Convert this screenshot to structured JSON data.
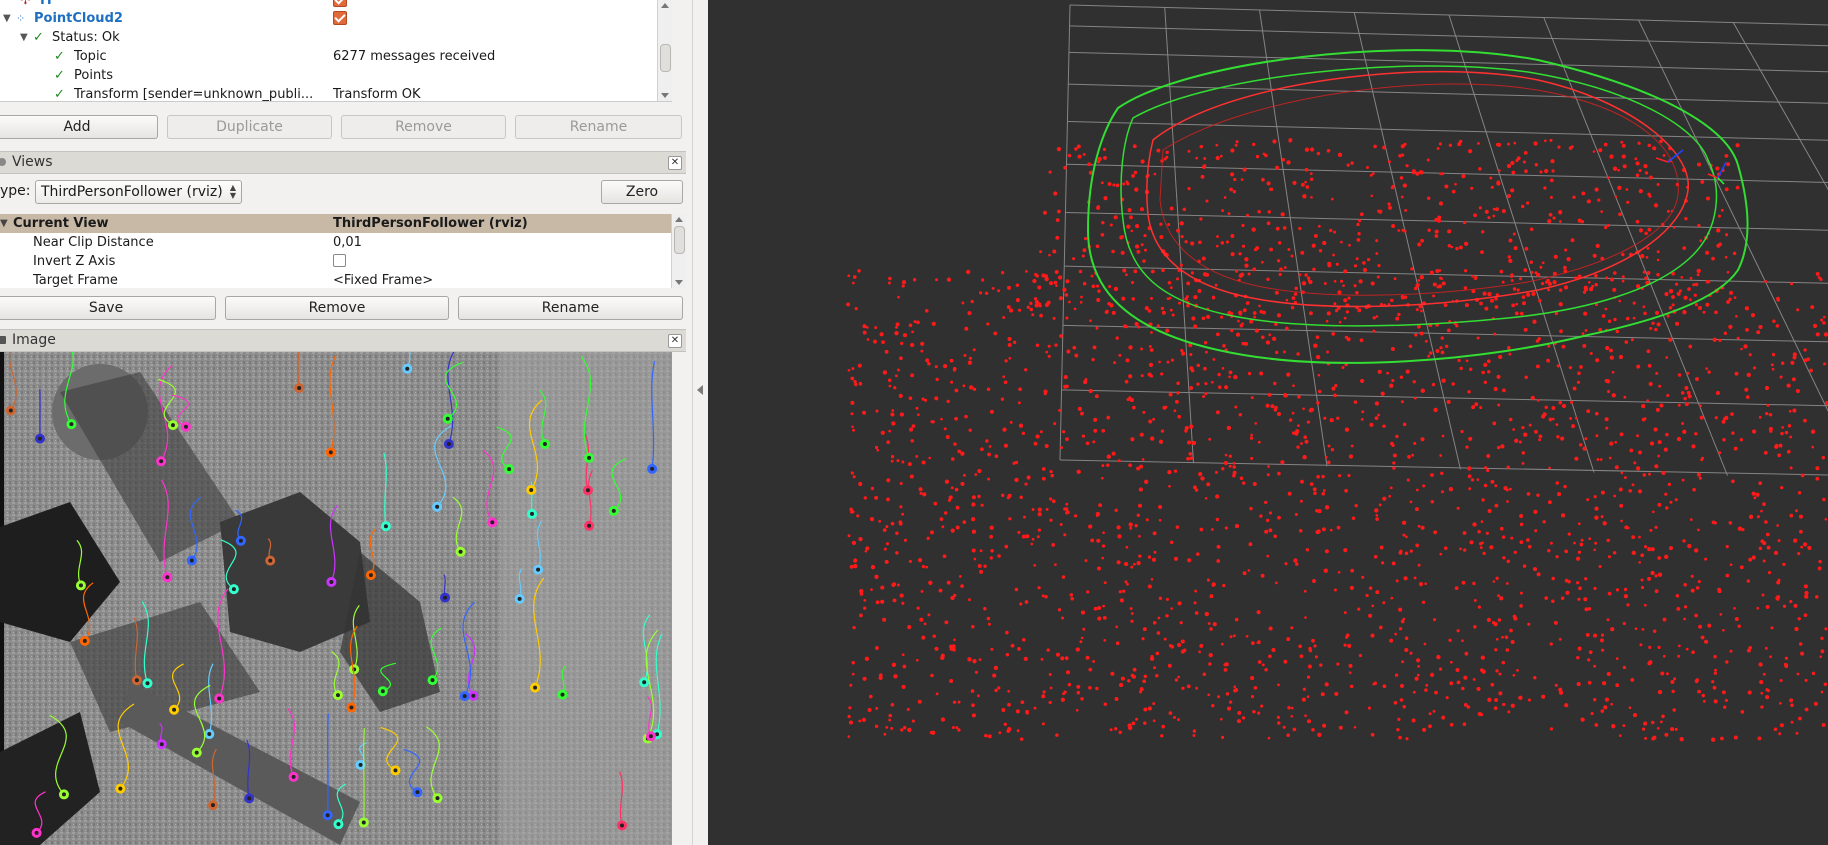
{
  "displays": {
    "rows": [
      {
        "label": "TF",
        "checked": true
      },
      {
        "label": "PointCloud2",
        "checked": true
      },
      {
        "label": "Status: Ok"
      },
      {
        "label": "Topic",
        "value": "6277 messages received"
      },
      {
        "label": "Points"
      },
      {
        "label": "Transform [sender=unknown_publi...",
        "value": "Transform OK"
      }
    ],
    "buttons": {
      "add": "Add",
      "duplicate": "Duplicate",
      "remove": "Remove",
      "rename": "Rename"
    }
  },
  "views": {
    "title": "Views",
    "type_label": "ype:",
    "type_value": "ThirdPersonFollower (rviz)",
    "zero": "Zero",
    "header_name": "Current View",
    "header_value": "ThirdPersonFollower (rviz)",
    "props": [
      {
        "label": "Near Clip Distance",
        "value": "0,01"
      },
      {
        "label": "Invert Z Axis"
      },
      {
        "label": "Target Frame",
        "value": "<Fixed Frame>"
      }
    ],
    "buttons": {
      "save": "Save",
      "remove": "Remove",
      "rename": "Rename"
    }
  },
  "image_panel": {
    "title": "Image"
  },
  "colors": {
    "accent_blue": "#1f6fc1",
    "check_orange": "#e26a3a",
    "viewport_bg": "#303030",
    "cloud": "#ff1a1a",
    "path_green": "#33dd33"
  },
  "icons": {
    "close": "close-icon",
    "check": "check-icon",
    "expand": "triangle-down-icon"
  }
}
